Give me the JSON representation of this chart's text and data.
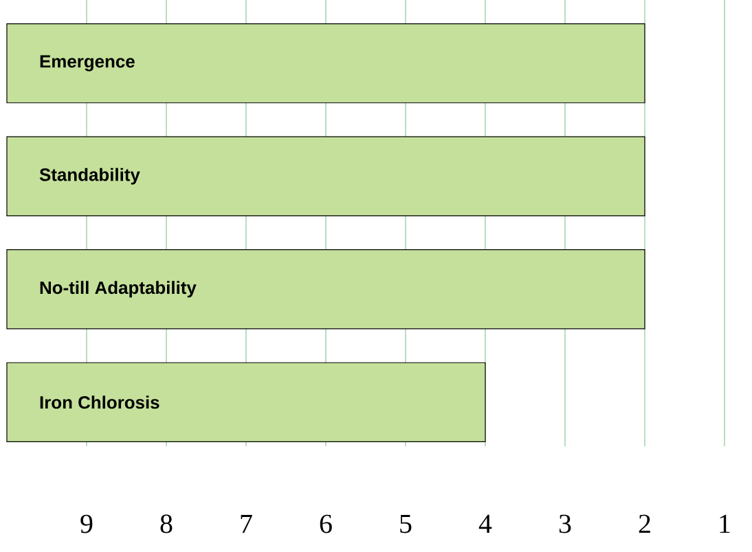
{
  "chart_data": {
    "type": "bar",
    "orientation": "horizontal",
    "categories": [
      "Emergence",
      "Standability",
      "No-till Adaptability",
      "Iron Chlorosis"
    ],
    "values": [
      -8,
      -8,
      -8,
      -6
    ],
    "base": [
      10,
      10,
      10,
      10
    ],
    "color": "#c5e09b",
    "xlim": [
      10,
      1
    ],
    "xticks": [
      9,
      8,
      7,
      6,
      5,
      4,
      3,
      2,
      1
    ],
    "grid": "x"
  }
}
